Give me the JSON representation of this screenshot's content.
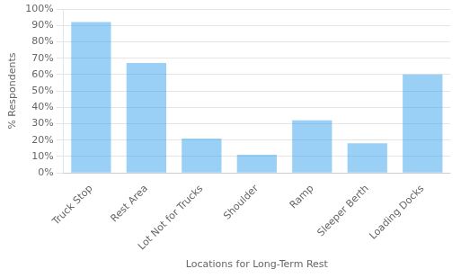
{
  "chart_data": {
    "type": "bar",
    "categories": [
      "Truck Stop",
      "Rest Area",
      "Lot Not for Trucks",
      "Shoulder",
      "Ramp",
      "Sleeper Berth",
      "Loading Docks"
    ],
    "values": [
      92,
      67,
      21,
      11,
      32,
      18,
      60
    ],
    "xlabel": "Locations for Long-Term Rest",
    "ylabel": "% Respondents",
    "ylim": [
      0,
      100
    ],
    "yticks": [
      {
        "value": 0,
        "label": "0%"
      },
      {
        "value": 10,
        "label": "10%"
      },
      {
        "value": 20,
        "label": "20%"
      },
      {
        "value": 30,
        "label": "30%"
      },
      {
        "value": 40,
        "label": "40%"
      },
      {
        "value": 50,
        "label": "50%"
      },
      {
        "value": 60,
        "label": "60%"
      },
      {
        "value": 70,
        "label": "70%"
      },
      {
        "value": 80,
        "label": "80%"
      },
      {
        "value": 90,
        "label": "90%"
      },
      {
        "value": 100,
        "label": "100%"
      }
    ],
    "grid": true
  }
}
